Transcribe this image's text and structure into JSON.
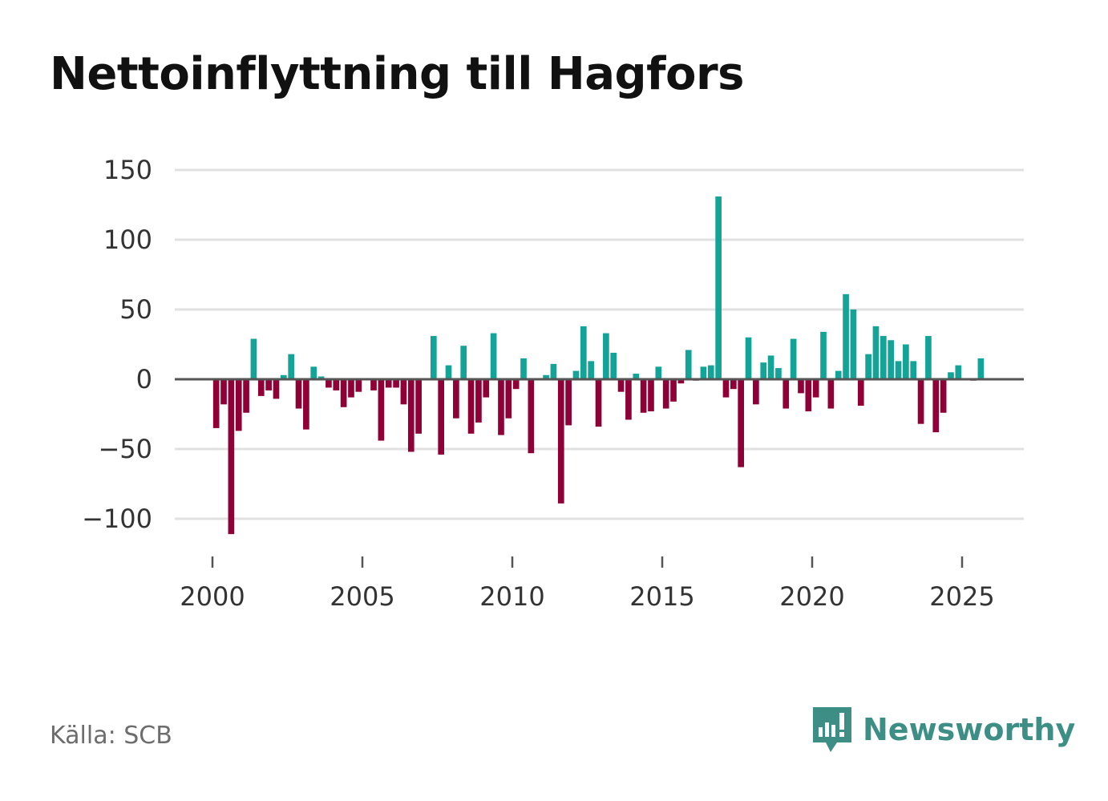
{
  "title": "Nettoinflyttning till Hagfors",
  "source": "Källa: SCB",
  "brand": "Newsworthy",
  "colors": {
    "positive": "#13a397",
    "negative": "#8e0036",
    "grid": "#e1e1e1",
    "zero": "#555555",
    "brand": "#3d8f86"
  },
  "chart_data": {
    "type": "bar",
    "title": "Nettoinflyttning till Hagfors",
    "xlabel": "",
    "ylabel": "",
    "ylim": [
      -115,
      150
    ],
    "xlim": [
      1999.5,
      2027.0
    ],
    "grid": true,
    "yticks": [
      150,
      100,
      50,
      0,
      -50,
      -100
    ],
    "ytick_labels": [
      "150",
      "100",
      "50",
      "0",
      "−50",
      "−100"
    ],
    "xticks": [
      2000,
      2005,
      2010,
      2015,
      2020,
      2025
    ],
    "xtick_labels": [
      "2000",
      "2005",
      "2010",
      "2015",
      "2020",
      "2025"
    ],
    "x_start": 2000.125,
    "x_step": 0.25,
    "values": [
      -35,
      -18,
      -111,
      -37,
      -24,
      29,
      -12,
      -8,
      -14,
      3,
      18,
      -21,
      -36,
      9,
      2,
      -6,
      -8,
      -20,
      -13,
      -9,
      0,
      -8,
      -44,
      -6,
      -6,
      -18,
      -52,
      -39,
      0,
      31,
      -54,
      10,
      -28,
      24,
      -39,
      -31,
      -13,
      33,
      -40,
      -28,
      -7,
      15,
      -53,
      0,
      3,
      11,
      -89,
      -33,
      6,
      38,
      13,
      -34,
      33,
      19,
      -9,
      -29,
      4,
      -24,
      -23,
      9,
      -21,
      -16,
      -3,
      21,
      -1,
      9,
      10,
      131,
      -13,
      -7,
      -63,
      30,
      -18,
      12,
      17,
      8,
      -21,
      29,
      -10,
      -23,
      -13,
      34,
      -21,
      6,
      61,
      50,
      -19,
      18,
      38,
      31,
      28,
      13,
      25,
      13,
      -32,
      31,
      -38,
      -24,
      5,
      10,
      0,
      -1,
      15
    ]
  }
}
